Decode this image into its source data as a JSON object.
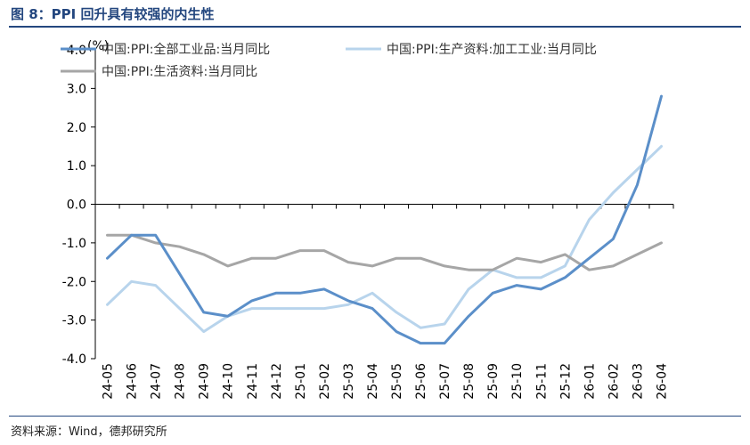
{
  "title": "图 8：PPI 回升具有较强的内生性",
  "source": "资料来源：Wind，德邦研究所",
  "chart_data": {
    "type": "line",
    "unit": "(%)",
    "categories": [
      "24-05",
      "24-06",
      "24-07",
      "24-08",
      "24-09",
      "24-10",
      "24-11",
      "24-12",
      "25-01",
      "25-02",
      "25-03",
      "25-04",
      "25-05",
      "25-06",
      "25-07",
      "25-08",
      "25-09",
      "25-10",
      "25-11",
      "25-12",
      "26-01",
      "26-02",
      "26-03",
      "26-04"
    ],
    "ylim": [
      -4.0,
      4.0
    ],
    "yticks": [
      "4.0",
      "3.0",
      "2.0",
      "1.0",
      "0.0",
      "-1.0",
      "-2.0",
      "-3.0",
      "-4.0"
    ],
    "legend_position": "top",
    "series": [
      {
        "name": "中国:PPI:全部工业品:当月同比",
        "color": "#5b8fc9",
        "values": [
          -1.4,
          -0.8,
          -0.8,
          -1.8,
          -2.8,
          -2.9,
          -2.5,
          -2.3,
          -2.3,
          -2.2,
          -2.5,
          -2.7,
          -3.3,
          -3.6,
          -3.6,
          -2.9,
          -2.3,
          -2.1,
          -2.2,
          -1.9,
          -1.4,
          -0.9,
          0.5,
          2.8
        ]
      },
      {
        "name": "中国:PPI:生产资料:加工工业:当月同比",
        "color": "#b8d4ec",
        "values": [
          -2.6,
          -2.0,
          -2.1,
          -2.7,
          -3.3,
          -2.9,
          -2.7,
          -2.7,
          -2.7,
          -2.7,
          -2.6,
          -2.3,
          -2.8,
          -3.2,
          -3.1,
          -2.2,
          -1.7,
          -1.9,
          -1.9,
          -1.6,
          -0.4,
          0.3,
          0.9,
          1.5
        ]
      },
      {
        "name": "中国:PPI:生活资料:当月同比",
        "color": "#a6a6a6",
        "values": [
          -0.8,
          -0.8,
          -1.0,
          -1.1,
          -1.3,
          -1.6,
          -1.4,
          -1.4,
          -1.2,
          -1.2,
          -1.5,
          -1.6,
          -1.4,
          -1.4,
          -1.6,
          -1.7,
          -1.7,
          -1.4,
          -1.5,
          -1.3,
          -1.7,
          -1.6,
          -1.3,
          -1.0
        ]
      }
    ]
  }
}
